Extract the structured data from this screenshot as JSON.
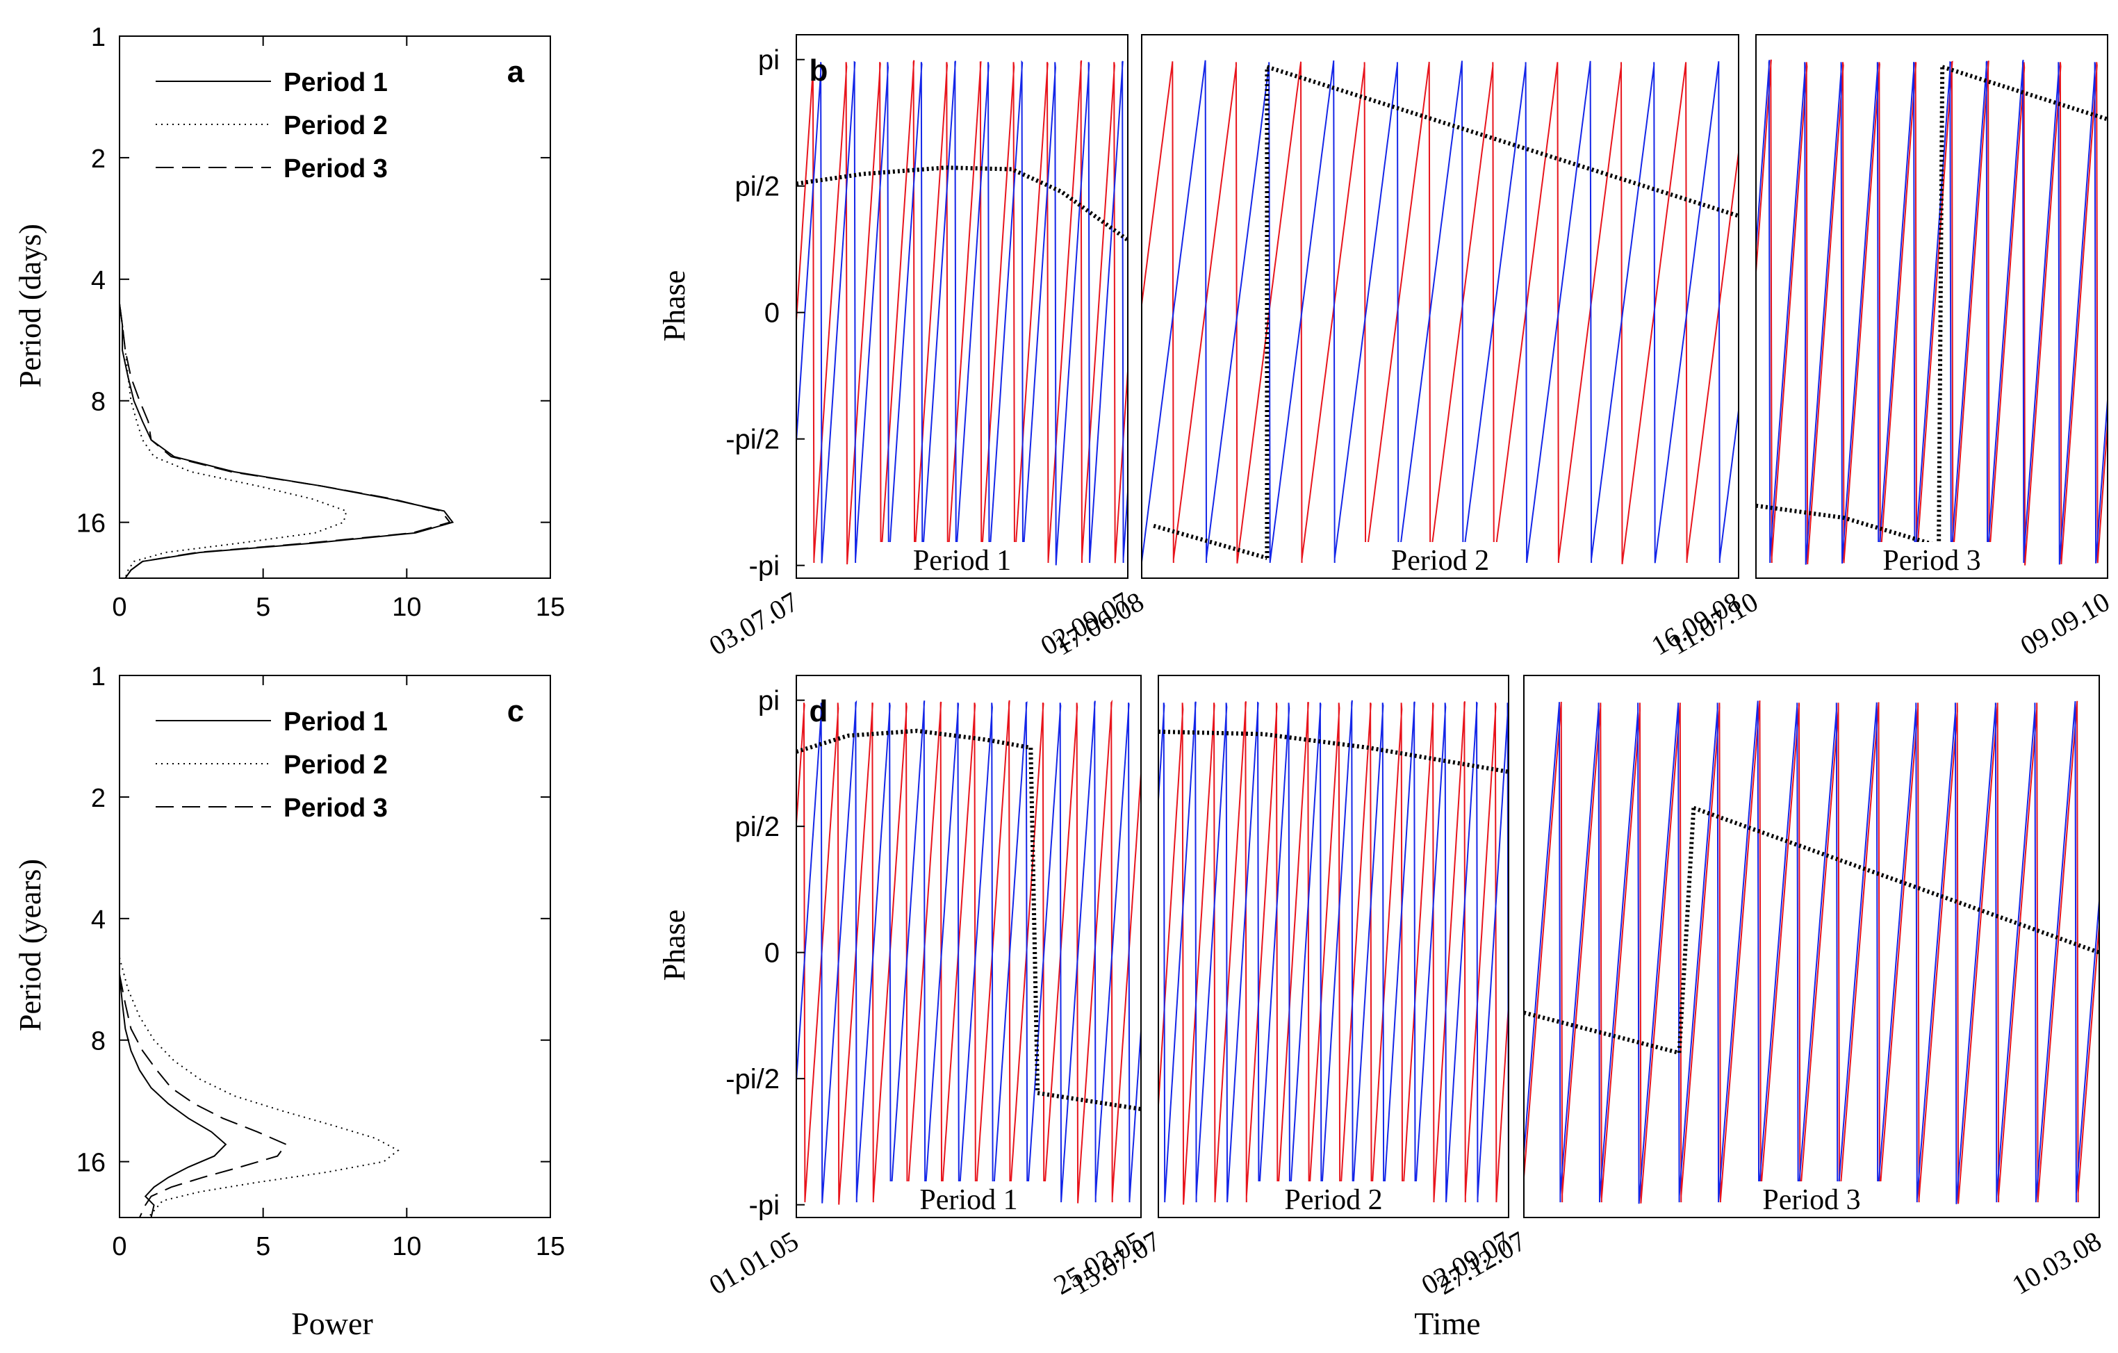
{
  "figure": {
    "power_xlabel": "Power",
    "time_xlabel": "Time",
    "phase_ylabel": "Phase",
    "colors": {
      "red": "#e8141c",
      "blue": "#1426e8",
      "black": "#000000"
    }
  },
  "chart_data": [
    {
      "id": "a",
      "type": "line",
      "panel_label": "a",
      "xlabel": "",
      "ylabel": "Period (days)",
      "xlim": [
        0,
        15
      ],
      "x_ticks": [
        "0",
        "5",
        "10",
        "15"
      ],
      "y_scale": "log2",
      "ylim": [
        1,
        22
      ],
      "y_ticks": [
        "1",
        "2",
        "4",
        "8",
        "16"
      ],
      "legend": [
        {
          "label": "Period 1",
          "style": "solid"
        },
        {
          "label": "Period 2",
          "style": "dotted"
        },
        {
          "label": "Period 3",
          "style": "dashed"
        }
      ],
      "legend_position": "top-left",
      "series": [
        {
          "name": "Period 1",
          "style": "solid",
          "period": [
            4.6,
            5.2,
            6.0,
            7.0,
            8.0,
            9.0,
            10.0,
            11.0,
            12.0,
            13.0,
            14.0,
            15.0,
            16.0,
            17.0,
            18.0,
            19.0,
            20.0,
            21.0,
            22.0
          ],
          "power": [
            0.0,
            0.1,
            0.1,
            0.3,
            0.5,
            0.8,
            1.1,
            1.9,
            4.0,
            7.0,
            9.4,
            11.3,
            11.6,
            10.3,
            6.8,
            2.8,
            0.8,
            0.4,
            0.2
          ]
        },
        {
          "name": "Period 2",
          "style": "dotted",
          "period": [
            4.6,
            5.2,
            6.0,
            7.0,
            8.0,
            9.0,
            10.0,
            11.0,
            12.0,
            13.0,
            14.0,
            15.0,
            16.0,
            17.0,
            18.0,
            19.0,
            20.0,
            21.0,
            22.0
          ],
          "power": [
            0.0,
            0.1,
            0.2,
            0.3,
            0.4,
            0.6,
            0.8,
            1.2,
            2.5,
            4.8,
            6.7,
            7.9,
            7.8,
            6.8,
            4.2,
            1.6,
            0.5,
            0.3,
            0.2
          ]
        },
        {
          "name": "Period 3",
          "style": "dashed",
          "period": [
            4.6,
            5.2,
            6.0,
            7.0,
            8.0,
            9.0,
            10.0,
            11.0,
            12.0,
            13.0,
            14.0,
            15.0,
            16.0,
            17.0,
            18.0,
            19.0,
            20.0,
            21.0,
            22.0
          ],
          "power": [
            0.0,
            0.1,
            0.2,
            0.4,
            0.7,
            1.0,
            1.1,
            1.8,
            3.9,
            7.0,
            9.5,
            11.2,
            11.5,
            10.2,
            6.6,
            2.7,
            0.8,
            0.4,
            0.2
          ]
        }
      ]
    },
    {
      "id": "c",
      "type": "line",
      "panel_label": "c",
      "xlabel": "Power",
      "ylabel": "Period (years)",
      "xlim": [
        0,
        15
      ],
      "x_ticks": [
        "0",
        "5",
        "10",
        "15"
      ],
      "y_scale": "log2",
      "ylim": [
        1,
        22
      ],
      "y_ticks": [
        "1",
        "2",
        "4",
        "8",
        "16"
      ],
      "legend": [
        {
          "label": "Period 1",
          "style": "solid"
        },
        {
          "label": "Period 2",
          "style": "dotted"
        },
        {
          "label": "Period 3",
          "style": "dashed"
        }
      ],
      "legend_position": "top-left",
      "series": [
        {
          "name": "Period 1",
          "style": "solid",
          "period": [
            5.5,
            6.5,
            7.5,
            8.5,
            9.5,
            10.5,
            11.5,
            12.5,
            13.5,
            14.5,
            15.5,
            16.5,
            17.5,
            18.5,
            19.5,
            20.5,
            22.0
          ],
          "power": [
            0.0,
            0.1,
            0.2,
            0.4,
            0.7,
            1.1,
            1.7,
            2.4,
            3.2,
            3.7,
            3.3,
            2.4,
            1.7,
            1.2,
            0.9,
            1.2,
            1.1
          ]
        },
        {
          "name": "Period 2",
          "style": "dotted",
          "period": [
            5.0,
            6.0,
            7.0,
            8.0,
            9.0,
            10.0,
            11.0,
            12.0,
            13.0,
            14.0,
            15.0,
            16.0,
            17.0,
            18.0,
            19.0,
            20.0,
            22.0
          ],
          "power": [
            0.0,
            0.3,
            0.7,
            1.2,
            1.9,
            2.8,
            4.0,
            5.7,
            7.4,
            8.9,
            9.7,
            9.2,
            7.2,
            4.8,
            2.8,
            1.5,
            1.0
          ]
        },
        {
          "name": "Period 3",
          "style": "dashed",
          "period": [
            5.5,
            6.5,
            7.5,
            8.5,
            9.5,
            10.5,
            11.5,
            12.5,
            13.5,
            14.5,
            15.5,
            16.5,
            17.5,
            18.5,
            19.5,
            20.5,
            22.0
          ],
          "power": [
            0.0,
            0.2,
            0.4,
            0.8,
            1.3,
            1.8,
            2.6,
            3.6,
            4.8,
            5.8,
            5.5,
            4.2,
            2.9,
            1.8,
            1.1,
            0.9,
            0.7
          ]
        }
      ]
    },
    {
      "id": "b",
      "type": "line",
      "panel_label": "b",
      "ylabel": "Phase",
      "xlabel": "",
      "y_ticks": [
        "pi",
        "pi/2",
        "0",
        "-pi/2",
        "-pi"
      ],
      "ylim": [
        -3.3,
        3.45
      ],
      "segments": [
        {
          "label": "Period 1",
          "x_tick_labels": [
            "03.07.07",
            "02.09.07"
          ],
          "phi_red": -0.1,
          "T_red": 9.9,
          "phi_blue": -1.6,
          "T_blue": 9.9,
          "black": [
            {
              "t": [
                0,
                0.2,
                0.45,
                0.65,
                0.8,
                1.0
              ],
              "phase": [
                1.6,
                1.72,
                1.8,
                1.78,
                1.5,
                0.9
              ]
            }
          ]
        },
        {
          "label": "Period 2",
          "x_tick_labels": [
            "17.06.08",
            "16.09.08"
          ],
          "phi_red": 0.1,
          "T_red": 9.3,
          "phi_blue": -3.1,
          "T_blue": 9.3,
          "black": [
            {
              "t": [
                0.02,
                0.21
              ],
              "phase": [
                -2.65,
                -3.05
              ]
            },
            {
              "t": [
                0.21,
                0.21
              ],
              "phase": [
                -3.05,
                3.05
              ]
            },
            {
              "t": [
                0.21,
                1.0
              ],
              "phase": [
                3.05,
                1.2
              ]
            }
          ]
        },
        {
          "label": "Period 3",
          "x_tick_labels": [
            "11.07.10",
            "09.09.10"
          ],
          "phi_red": 0.5,
          "T_red": 9.7,
          "phi_blue": 0.8,
          "T_blue": 9.7,
          "black": [
            {
              "t": [
                0.0,
                0.25,
                0.52
              ],
              "phase": [
                -2.4,
                -2.55,
                -2.9
              ]
            },
            {
              "t": [
                0.52,
                0.53
              ],
              "phase": [
                -2.9,
                3.05
              ]
            },
            {
              "t": [
                0.53,
                1.0
              ],
              "phase": [
                3.05,
                2.4
              ]
            }
          ]
        }
      ]
    },
    {
      "id": "d",
      "type": "line",
      "panel_label": "d",
      "ylabel": "Phase",
      "xlabel": "Time",
      "y_ticks": [
        "pi",
        "pi/2",
        "0",
        "-pi/2",
        "-pi"
      ],
      "ylim": [
        -3.3,
        3.45
      ],
      "segments": [
        {
          "label": "Period 1",
          "x_tick_labels": [
            "01.01.05",
            "25.02.05"
          ],
          "phi_red": 1.6,
          "T_red": 10.1,
          "phi_blue": -1.6,
          "T_blue": 10.1,
          "black": [
            {
              "t": [
                0.0,
                0.15,
                0.35,
                0.55,
                0.68
              ],
              "phase": [
                2.5,
                2.7,
                2.76,
                2.65,
                2.55
              ]
            },
            {
              "t": [
                0.68,
                0.7
              ],
              "phase": [
                2.55,
                -1.75
              ]
            },
            {
              "t": [
                0.7,
                1.0
              ],
              "phase": [
                -1.75,
                -1.95
              ]
            }
          ]
        },
        {
          "label": "Period 2",
          "x_tick_labels": [
            "15.07.07",
            "02.09.07"
          ],
          "phi_red": -1.9,
          "T_red": 11.2,
          "phi_blue": 1.9,
          "T_blue": 11.2,
          "black": [
            {
              "t": [
                0.0,
                0.3,
                0.6,
                1.0
              ],
              "phase": [
                2.75,
                2.72,
                2.55,
                2.25
              ]
            }
          ]
        },
        {
          "label": "Period 3",
          "x_tick_labels": [
            "27.12.07",
            "10.03.08"
          ],
          "phi_red": -2.8,
          "T_red": 14.5,
          "phi_blue": -2.5,
          "T_blue": 14.5,
          "black": [
            {
              "t": [
                0.0,
                0.27
              ],
              "phase": [
                -0.75,
                -1.25
              ]
            },
            {
              "t": [
                0.27,
                0.295
              ],
              "phase": [
                -1.25,
                1.8
              ]
            },
            {
              "t": [
                0.295,
                1.0
              ],
              "phase": [
                1.8,
                0.0
              ]
            }
          ]
        }
      ]
    }
  ]
}
